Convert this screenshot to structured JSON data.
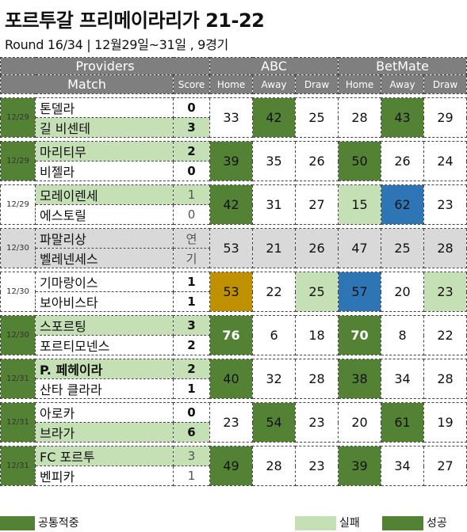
{
  "title": "포르투갈 프리메이라리가 21-22",
  "subtitle": "Round 16/34 | 12월29일~31일 , 9경기",
  "header": {
    "providers": "Providers",
    "abc": "ABC",
    "betmate": "BetMate",
    "match": "Match",
    "score": "Score",
    "home": "Home",
    "away": "Away",
    "draw": "Draw"
  },
  "colors": {
    "dark_green": "#548235",
    "light_green": "#c5e0b4",
    "gray": "#d9d9d9",
    "blue": "#2e75b6",
    "gold": "#bf9000",
    "header_gray": "#7f7f7f"
  },
  "matches": [
    {
      "date": "12/29",
      "home": "톤델라",
      "away": "길 비센테",
      "home_score": "0",
      "away_score": "3",
      "abc": {
        "home": "33",
        "away": "42",
        "draw": "25"
      },
      "betmate": {
        "home": "28",
        "away": "43",
        "draw": "29"
      }
    },
    {
      "date": "12/29",
      "home": "마리티무",
      "away": "비젤라",
      "home_score": "2",
      "away_score": "0",
      "abc": {
        "home": "39",
        "away": "35",
        "draw": "26"
      },
      "betmate": {
        "home": "50",
        "away": "26",
        "draw": "24"
      }
    },
    {
      "date": "12/29",
      "home": "모레이렌세",
      "away": "에스토릴",
      "home_score": "1",
      "away_score": "0",
      "abc": {
        "home": "42",
        "away": "31",
        "draw": "27"
      },
      "betmate": {
        "home": "15",
        "away": "62",
        "draw": "23"
      }
    },
    {
      "date": "12/30",
      "home": "파말리상",
      "away": "벨레넨세스",
      "home_score": "연",
      "away_score": "기",
      "abc": {
        "home": "53",
        "away": "21",
        "draw": "26"
      },
      "betmate": {
        "home": "47",
        "away": "25",
        "draw": "28"
      }
    },
    {
      "date": "12/30",
      "home": "기마랑이스",
      "away": "보아비스타",
      "home_score": "1",
      "away_score": "1",
      "abc": {
        "home": "53",
        "away": "22",
        "draw": "25"
      },
      "betmate": {
        "home": "57",
        "away": "20",
        "draw": "23"
      }
    },
    {
      "date": "12/30",
      "home": "스포르팅",
      "away": "포르티모넨스",
      "home_score": "3",
      "away_score": "2",
      "abc": {
        "home": "76",
        "away": "6",
        "draw": "18"
      },
      "betmate": {
        "home": "70",
        "away": "8",
        "draw": "22"
      }
    },
    {
      "date": "12/31",
      "home": "P. 페헤이라",
      "away": "산타 클라라",
      "home_score": "2",
      "away_score": "1",
      "abc": {
        "home": "40",
        "away": "32",
        "draw": "28"
      },
      "betmate": {
        "home": "38",
        "away": "34",
        "draw": "28"
      }
    },
    {
      "date": "12/31",
      "home": "아로카",
      "away": "브라가",
      "home_score": "0",
      "away_score": "6",
      "abc": {
        "home": "23",
        "away": "54",
        "draw": "23"
      },
      "betmate": {
        "home": "20",
        "away": "61",
        "draw": "19"
      }
    },
    {
      "date": "12/31",
      "home": "FC 포르투",
      "away": "벤피카",
      "home_score": "3",
      "away_score": "1",
      "abc": {
        "home": "49",
        "away": "28",
        "draw": "23"
      },
      "betmate": {
        "home": "39",
        "away": "34",
        "draw": "27"
      }
    }
  ],
  "legend": {
    "common_hit": "공통적중",
    "fail": "실패",
    "success": "성공"
  }
}
